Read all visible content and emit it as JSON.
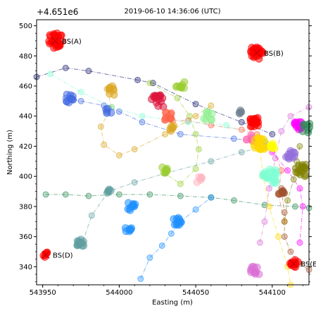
{
  "chart_data": {
    "type": "scatter",
    "title": "2019-06-10 14:36:06 (UTC)",
    "offset_label": "+4.651e6",
    "xlabel": "Easting (m)",
    "ylabel": "Northing (m)",
    "xlim": [
      543946,
      544124
    ],
    "ylim": [
      4651328,
      4651504
    ],
    "x_ticks": [
      543950,
      544000,
      544050,
      544100
    ],
    "y_ticks": [
      340,
      360,
      380,
      400,
      420,
      440,
      460,
      480,
      500
    ],
    "y_tick_base": 4651000,
    "grid": false,
    "base_stations": [
      {
        "label": "BS(A)",
        "x": 543958,
        "y": 4651490
      },
      {
        "label": "BS(B)",
        "x": 544090,
        "y": 4651482
      },
      {
        "label": "BS(D)",
        "x": 543952,
        "y": 4651348
      },
      {
        "label": "BS(E)",
        "x": 544114,
        "y": 4651342
      }
    ],
    "tracks": [
      {
        "color": "#191970",
        "style": "dashdot",
        "points": [
          [
            543946,
            466
          ],
          [
            543965,
            472
          ],
          [
            543980,
            470
          ],
          [
            544012,
            464
          ],
          [
            544022,
            462
          ],
          [
            544050,
            448
          ],
          [
            544080,
            436
          ],
          [
            544100,
            428
          ]
        ]
      },
      {
        "color": "#4169e1",
        "style": "dashdot",
        "points": [
          [
            543965,
            452
          ],
          [
            543975,
            450
          ],
          [
            543990,
            447
          ],
          [
            544000,
            443
          ],
          [
            544015,
            436
          ],
          [
            544040,
            428
          ],
          [
            544075,
            425
          ],
          [
            544095,
            423
          ]
        ]
      },
      {
        "color": "#daa520",
        "style": "dashdot",
        "points": [
          [
            543992,
            458
          ],
          [
            543995,
            446
          ],
          [
            543988,
            433
          ],
          [
            543990,
            421
          ],
          [
            544000,
            414
          ],
          [
            544010,
            418
          ],
          [
            544030,
            428
          ],
          [
            544050,
            440
          ],
          [
            544060,
            447
          ]
        ]
      },
      {
        "color": "#9acd32",
        "style": "dashdot",
        "points": [
          [
            544020,
            462
          ],
          [
            544038,
            452
          ],
          [
            544046,
            440
          ],
          [
            544050,
            428
          ],
          [
            544052,
            418
          ],
          [
            544050,
            405
          ],
          [
            544040,
            395
          ],
          [
            544030,
            402
          ]
        ]
      },
      {
        "color": "#2e8b57",
        "style": "dashdot",
        "points": [
          [
            543952,
            388
          ],
          [
            543965,
            388
          ],
          [
            543980,
            387
          ],
          [
            544000,
            388
          ],
          [
            544020,
            388
          ],
          [
            544040,
            387
          ],
          [
            544060,
            386
          ],
          [
            544075,
            384
          ],
          [
            544095,
            381
          ],
          [
            544115,
            380
          ],
          [
            544124,
            379
          ]
        ]
      },
      {
        "color": "#5f9ea0",
        "style": "dashdot",
        "points": [
          [
            543976,
            356
          ],
          [
            543982,
            374
          ],
          [
            543993,
            390
          ],
          [
            544010,
            396
          ],
          [
            544030,
            402
          ],
          [
            544060,
            410
          ],
          [
            544080,
            416
          ],
          [
            544095,
            420
          ]
        ]
      },
      {
        "color": "#1e90ff",
        "style": "dashdot",
        "points": [
          [
            544014,
            332
          ],
          [
            544020,
            346
          ],
          [
            544028,
            354
          ],
          [
            544034,
            362
          ],
          [
            544040,
            370
          ],
          [
            544050,
            378
          ],
          [
            544060,
            386
          ]
        ]
      },
      {
        "color": "#ff6347",
        "style": "dashdot",
        "points": [
          [
            544035,
            437
          ],
          [
            544045,
            437
          ],
          [
            544060,
            434
          ],
          [
            544080,
            431
          ],
          [
            544090,
            428
          ],
          [
            544100,
            420
          ],
          [
            544106,
            404
          ],
          [
            544104,
            388
          ],
          [
            544108,
            370
          ]
        ]
      },
      {
        "color": "#ff00ff",
        "style": "dashdot",
        "points": [
          [
            544090,
            422
          ],
          [
            544100,
            416
          ],
          [
            544110,
            404
          ],
          [
            544118,
            392
          ],
          [
            544120,
            380
          ],
          [
            544118,
            356
          ]
        ]
      },
      {
        "color": "#ffd700",
        "style": "dashdot",
        "points": [
          [
            544092,
            418
          ],
          [
            544094,
            400
          ],
          [
            544098,
            380
          ],
          [
            544104,
            360
          ],
          [
            544110,
            340
          ],
          [
            544112,
            328
          ]
        ]
      },
      {
        "color": "#da70d6",
        "style": "dashdot",
        "points": [
          [
            544092,
            356
          ],
          [
            544095,
            370
          ],
          [
            544098,
            392
          ],
          [
            544102,
            412
          ],
          [
            544106,
            430
          ],
          [
            544112,
            440
          ],
          [
            544124,
            446
          ]
        ]
      },
      {
        "color": "#7fffd4",
        "style": "dashdot",
        "points": [
          [
            543955,
            468
          ],
          [
            543975,
            456
          ],
          [
            543995,
            446
          ],
          [
            544015,
            440
          ],
          [
            544045,
            436
          ],
          [
            544070,
            434
          ],
          [
            544095,
            424
          ]
        ]
      },
      {
        "color": "#808000",
        "style": "dashdot",
        "points": [
          [
            544118,
            420
          ],
          [
            544116,
            410
          ],
          [
            544114,
            398
          ],
          [
            544110,
            384
          ],
          [
            544108,
            370
          ]
        ]
      },
      {
        "color": "#a0522d",
        "style": "dashdot",
        "points": [
          [
            544106,
            392
          ],
          [
            544108,
            376
          ],
          [
            544108,
            360
          ],
          [
            544112,
            350
          ],
          [
            544118,
            342
          ],
          [
            544124,
            338
          ]
        ]
      }
    ],
    "clusters": [
      {
        "color": "#ff0000",
        "x": 543958,
        "y": 4651490,
        "n": 30,
        "spread": 5
      },
      {
        "color": "#ff0000",
        "x": 544090,
        "y": 4651482,
        "n": 26,
        "spread": 4
      },
      {
        "color": "#ff0000",
        "x": 543952,
        "y": 4651348,
        "n": 6,
        "spread": 1.5
      },
      {
        "color": "#ff0000",
        "x": 544114,
        "y": 4651342,
        "n": 12,
        "spread": 3
      },
      {
        "color": "#4169e1",
        "x": 543968,
        "y": 4651452,
        "n": 10,
        "spread": 3
      },
      {
        "color": "#4169e1",
        "x": 543993,
        "y": 4651443,
        "n": 5,
        "spread": 2
      },
      {
        "color": "#daa520",
        "x": 543995,
        "y": 4651457,
        "n": 8,
        "spread": 3
      },
      {
        "color": "#9acd32",
        "x": 544040,
        "y": 4651460,
        "n": 10,
        "spread": 3
      },
      {
        "color": "#dc143c",
        "x": 544025,
        "y": 4651450,
        "n": 16,
        "spread": 4
      },
      {
        "color": "#ff6347",
        "x": 544032,
        "y": 4651440,
        "n": 10,
        "spread": 3
      },
      {
        "color": "#daa520",
        "x": 544035,
        "y": 4651432,
        "n": 6,
        "spread": 2
      },
      {
        "color": "#9acd32",
        "x": 544030,
        "y": 4651404,
        "n": 8,
        "spread": 2
      },
      {
        "color": "#5f9ea0",
        "x": 543993,
        "y": 4651390,
        "n": 5,
        "spread": 1.5
      },
      {
        "color": "#1e90ff",
        "x": 544008,
        "y": 4651380,
        "n": 10,
        "spread": 2.5
      },
      {
        "color": "#1e90ff",
        "x": 544006,
        "y": 4651365,
        "n": 7,
        "spread": 2
      },
      {
        "color": "#1e90ff",
        "x": 544038,
        "y": 4651370,
        "n": 12,
        "spread": 2.5
      },
      {
        "color": "#5f9ea0",
        "x": 543975,
        "y": 4651356,
        "n": 12,
        "spread": 2.5
      },
      {
        "color": "#708090",
        "x": 544080,
        "y": 4651443,
        "n": 5,
        "spread": 1.5
      },
      {
        "color": "#90ee90",
        "x": 544058,
        "y": 4651440,
        "n": 8,
        "spread": 3
      },
      {
        "color": "#ff0000",
        "x": 544088,
        "y": 4651436,
        "n": 22,
        "spread": 3
      },
      {
        "color": "#ff69b4",
        "x": 544085,
        "y": 4651425,
        "n": 8,
        "spread": 3
      },
      {
        "color": "#ffd700",
        "x": 544092,
        "y": 4651422,
        "n": 22,
        "spread": 4
      },
      {
        "color": "#ff00ff",
        "x": 544117,
        "y": 4651434,
        "n": 14,
        "spread": 3
      },
      {
        "color": "#2e8b57",
        "x": 544122,
        "y": 4651432,
        "n": 8,
        "spread": 3
      },
      {
        "color": "#9370db",
        "x": 544112,
        "y": 4651414,
        "n": 14,
        "spread": 3
      },
      {
        "color": "#808000",
        "x": 544118,
        "y": 4651404,
        "n": 16,
        "spread": 4
      },
      {
        "color": "#7fffd4",
        "x": 544098,
        "y": 4651400,
        "n": 24,
        "spread": 5
      },
      {
        "color": "#a0522d",
        "x": 544106,
        "y": 4651390,
        "n": 8,
        "spread": 2
      },
      {
        "color": "#ffb6c1",
        "x": 544052,
        "y": 4651398,
        "n": 6,
        "spread": 2
      },
      {
        "color": "#da70d6",
        "x": 544089,
        "y": 4651338,
        "n": 12,
        "spread": 3
      },
      {
        "color": "#ffff00",
        "x": 544100,
        "y": 4651420,
        "n": 8,
        "spread": 2
      }
    ]
  }
}
